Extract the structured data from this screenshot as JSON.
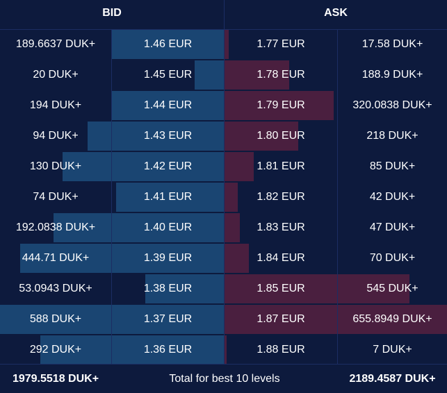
{
  "header": {
    "bid": "BID",
    "ask": "ASK"
  },
  "bid_color": "#1a4572",
  "ask_color": "#4a1f3f",
  "rows": [
    {
      "bid_qty": "189.6637 DUK+",
      "bid_price": "1.46 EUR",
      "ask_price": "1.77 EUR",
      "ask_qty": "17.58 DUK+",
      "bid_fill": 0.5,
      "ask_fill": 0.02
    },
    {
      "bid_qty": "20 DUK+",
      "bid_price": "1.45 EUR",
      "ask_price": "1.78 EUR",
      "ask_qty": "188.9 DUK+",
      "bid_fill": 0.13,
      "ask_fill": 0.29
    },
    {
      "bid_qty": "194 DUK+",
      "bid_price": "1.44 EUR",
      "ask_price": "1.79 EUR",
      "ask_qty": "320.0838 DUK+",
      "bid_fill": 0.5,
      "ask_fill": 0.49
    },
    {
      "bid_qty": "94 DUK+",
      "bid_price": "1.43 EUR",
      "ask_price": "1.80 EUR",
      "ask_qty": "218 DUK+",
      "bid_fill": 0.61,
      "ask_fill": 0.33
    },
    {
      "bid_qty": "130 DUK+",
      "bid_price": "1.42 EUR",
      "ask_price": "1.81 EUR",
      "ask_qty": "85 DUK+",
      "bid_fill": 0.72,
      "ask_fill": 0.13
    },
    {
      "bid_qty": "74 DUK+",
      "bid_price": "1.41 EUR",
      "ask_price": "1.82 EUR",
      "ask_qty": "42 DUK+",
      "bid_fill": 0.48,
      "ask_fill": 0.06
    },
    {
      "bid_qty": "192.0838 DUK+",
      "bid_price": "1.40 EUR",
      "ask_price": "1.83 EUR",
      "ask_qty": "47 DUK+",
      "bid_fill": 0.76,
      "ask_fill": 0.07
    },
    {
      "bid_qty": "444.71 DUK+",
      "bid_price": "1.39 EUR",
      "ask_price": "1.84 EUR",
      "ask_qty": "70 DUK+",
      "bid_fill": 0.91,
      "ask_fill": 0.11
    },
    {
      "bid_qty": "53.0943 DUK+",
      "bid_price": "1.38 EUR",
      "ask_price": "1.85 EUR",
      "ask_qty": "545 DUK+",
      "bid_fill": 0.35,
      "ask_fill": 0.83
    },
    {
      "bid_qty": "588 DUK+",
      "bid_price": "1.37 EUR",
      "ask_price": "1.87 EUR",
      "ask_qty": "655.8949 DUK+",
      "bid_fill": 1.0,
      "ask_fill": 1.0
    },
    {
      "bid_qty": "292 DUK+",
      "bid_price": "1.36 EUR",
      "ask_price": "1.88 EUR",
      "ask_qty": "7 DUK+",
      "bid_fill": 0.82,
      "ask_fill": 0.01
    }
  ],
  "footer": {
    "bid_total": "1979.5518 DUK+",
    "label": "Total for best 10 levels",
    "ask_total": "2189.4587 DUK+"
  }
}
